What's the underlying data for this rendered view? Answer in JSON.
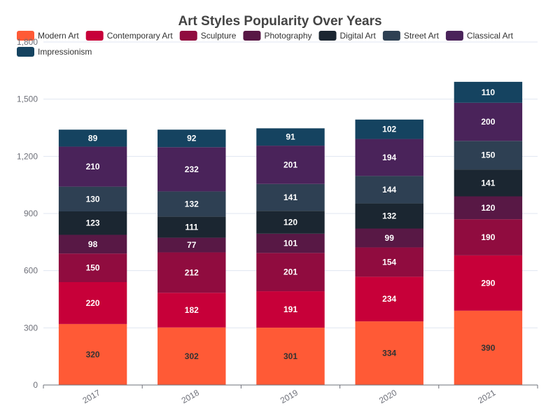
{
  "chart_data": {
    "type": "bar",
    "stacked": true,
    "title": "Art Styles Popularity Over Years",
    "xlabel": "",
    "ylabel": "",
    "categories": [
      "2017",
      "2018",
      "2019",
      "2020",
      "2021"
    ],
    "ylim": [
      0,
      1800
    ],
    "yticks": [
      "0",
      "300",
      "600",
      "900",
      "1,200",
      "1,500",
      "1,800"
    ],
    "grid": true,
    "legend_position": "top",
    "series": [
      {
        "name": "Modern Art",
        "color": "#ff5a36",
        "label_color": "#333333",
        "values": [
          320,
          302,
          301,
          334,
          390
        ]
      },
      {
        "name": "Contemporary Art",
        "color": "#c70039",
        "label_color": "#ffffff",
        "values": [
          220,
          182,
          191,
          234,
          290
        ]
      },
      {
        "name": "Sculpture",
        "color": "#900c3f",
        "label_color": "#ffffff",
        "values": [
          150,
          212,
          201,
          154,
          190
        ]
      },
      {
        "name": "Photography",
        "color": "#581845",
        "label_color": "#ffffff",
        "values": [
          98,
          77,
          101,
          99,
          120
        ]
      },
      {
        "name": "Digital Art",
        "color": "#1b2631",
        "label_color": "#ffffff",
        "values": [
          123,
          111,
          120,
          132,
          141
        ]
      },
      {
        "name": "Street Art",
        "color": "#2e4053",
        "label_color": "#ffffff",
        "values": [
          130,
          132,
          141,
          144,
          150
        ]
      },
      {
        "name": "Classical Art",
        "color": "#4a235a",
        "label_color": "#ffffff",
        "values": [
          210,
          232,
          201,
          194,
          200
        ]
      },
      {
        "name": "Impressionism",
        "color": "#154360",
        "label_color": "#ffffff",
        "values": [
          89,
          92,
          91,
          102,
          110
        ]
      }
    ]
  }
}
